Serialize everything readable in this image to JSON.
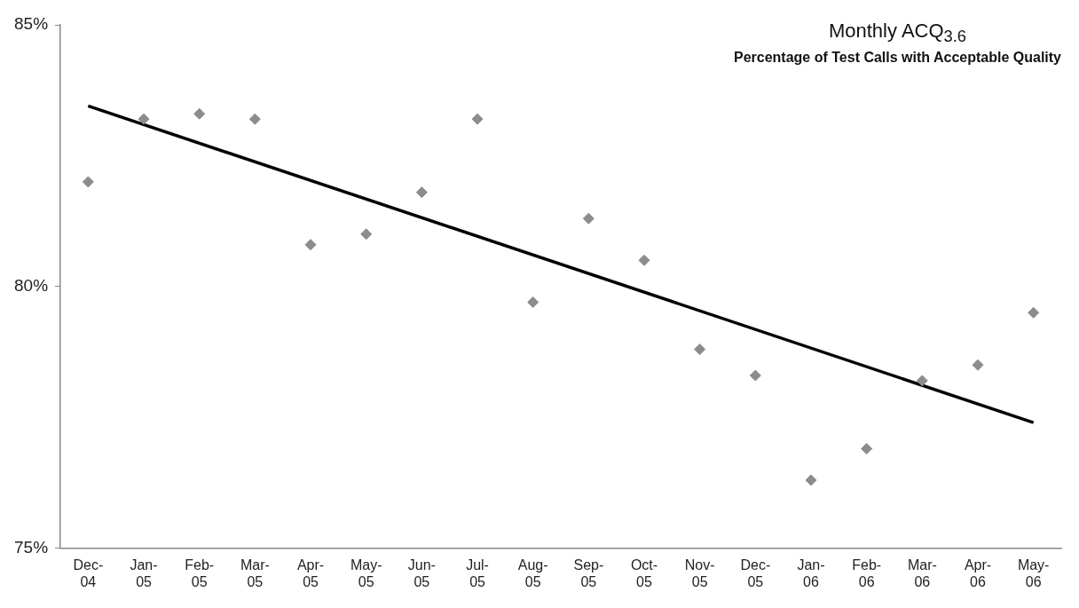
{
  "chart_data": {
    "type": "scatter",
    "title": "Monthly ACQ$_{3.6}$",
    "subtitle": "Percentage of Test Calls with Acceptable Quality",
    "categories": [
      "Dec-04",
      "Jan-05",
      "Feb-05",
      "Mar-05",
      "Apr-05",
      "May-05",
      "Jun-05",
      "Jul-05",
      "Aug-05",
      "Sep-05",
      "Oct-05",
      "Nov-05",
      "Dec-05",
      "Jan-06",
      "Feb-06",
      "Mar-06",
      "Apr-06",
      "May-06"
    ],
    "series": [
      {
        "type": "scatter",
        "color": "#8c8c8c",
        "marker": "diamond",
        "values": [
          82.0,
          83.2,
          83.3,
          83.2,
          80.8,
          81.0,
          81.8,
          83.2,
          79.7,
          81.3,
          80.5,
          78.8,
          78.3,
          76.3,
          76.9,
          78.2,
          78.5,
          79.5
        ]
      },
      {
        "type": "line",
        "color": "#000000",
        "marker": "none",
        "line_style": "solid",
        "x": [
          "Dec-04",
          "May-06"
        ],
        "values": [
          83.45,
          77.4
        ]
      }
    ],
    "ylim": [
      75,
      85
    ],
    "yticks": [
      {
        "value": 75,
        "label": "75%"
      },
      {
        "value": 80,
        "label": "80%"
      },
      {
        "value": 85,
        "label": "85%"
      }
    ]
  }
}
